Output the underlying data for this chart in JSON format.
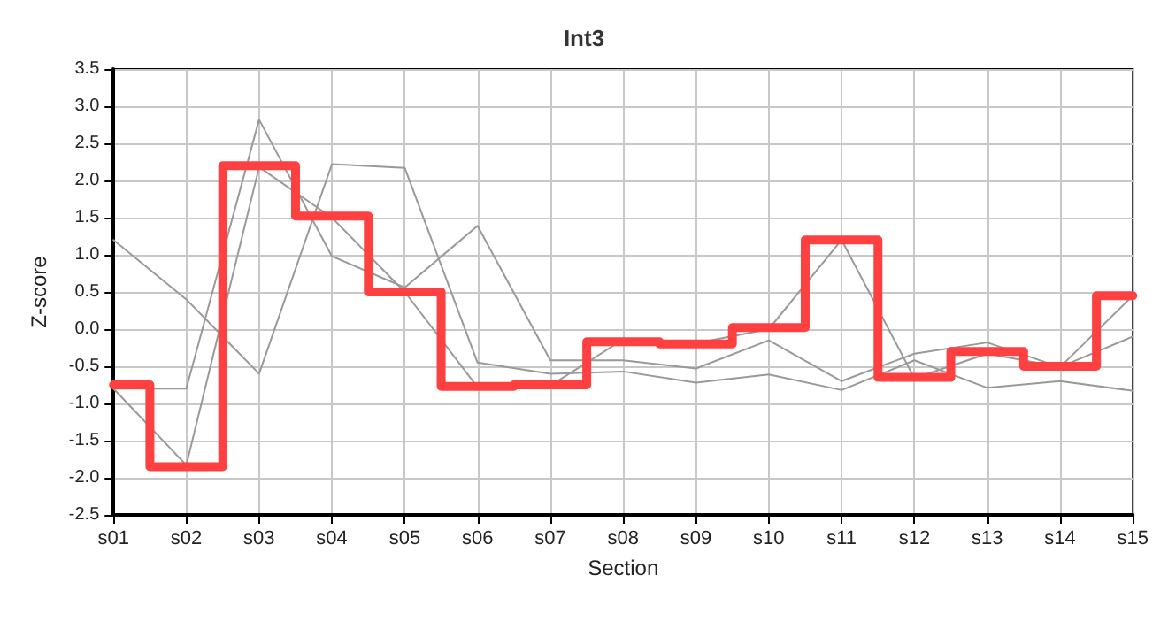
{
  "chart_data": {
    "type": "line",
    "title": "Int3",
    "xlabel": "Section",
    "ylabel": "Z-score",
    "categories": [
      "s01",
      "s02",
      "s03",
      "s04",
      "s05",
      "s06",
      "s07",
      "s08",
      "s09",
      "s10",
      "s11",
      "s12",
      "s13",
      "s14",
      "s15"
    ],
    "series": [
      {
        "color": "#999999",
        "values": [
          1.2,
          0.4,
          -0.6,
          2.22,
          2.17,
          -0.45,
          -0.6,
          -0.57,
          -0.72,
          -0.61,
          -0.82,
          -0.42,
          -0.79,
          -0.7,
          -0.83
        ]
      },
      {
        "color": "#999999",
        "values": [
          -0.8,
          -0.8,
          2.82,
          0.98,
          0.56,
          1.39,
          -0.42,
          -0.42,
          -0.53,
          -0.15,
          -0.7,
          -0.33,
          -0.18,
          -0.51,
          -0.1
        ]
      },
      {
        "color": "#999999",
        "values": [
          -0.8,
          -1.83,
          2.18,
          1.5,
          0.5,
          -0.78,
          -0.76,
          -0.14,
          -0.19,
          0.0,
          1.2,
          -0.66,
          -0.33,
          -0.51,
          0.45
        ]
      },
      {
        "type": "step",
        "color": "#ff4040",
        "values": [
          -0.75,
          -1.85,
          2.2,
          1.52,
          0.5,
          -0.77,
          -0.75,
          -0.17,
          -0.2,
          0.02,
          1.2,
          -0.65,
          -0.3,
          -0.5,
          0.45
        ]
      }
    ],
    "ylim": [
      -2.5,
      3.5
    ],
    "yticks": [
      -2.5,
      {
        "value": -2,
        "label": "-2.0"
      },
      -1.5,
      {
        "value": -1,
        "label": "-1.0"
      },
      -0.5,
      {
        "value": 0,
        "label": "0.0"
      },
      0.5,
      {
        "value": 1,
        "label": "1.0"
      },
      1.5,
      {
        "value": 2,
        "label": "2.0"
      },
      2.5,
      {
        "value": 3,
        "label": "3.0"
      },
      3.5
    ],
    "grid": true,
    "marker": "none",
    "line_style": "solid"
  }
}
